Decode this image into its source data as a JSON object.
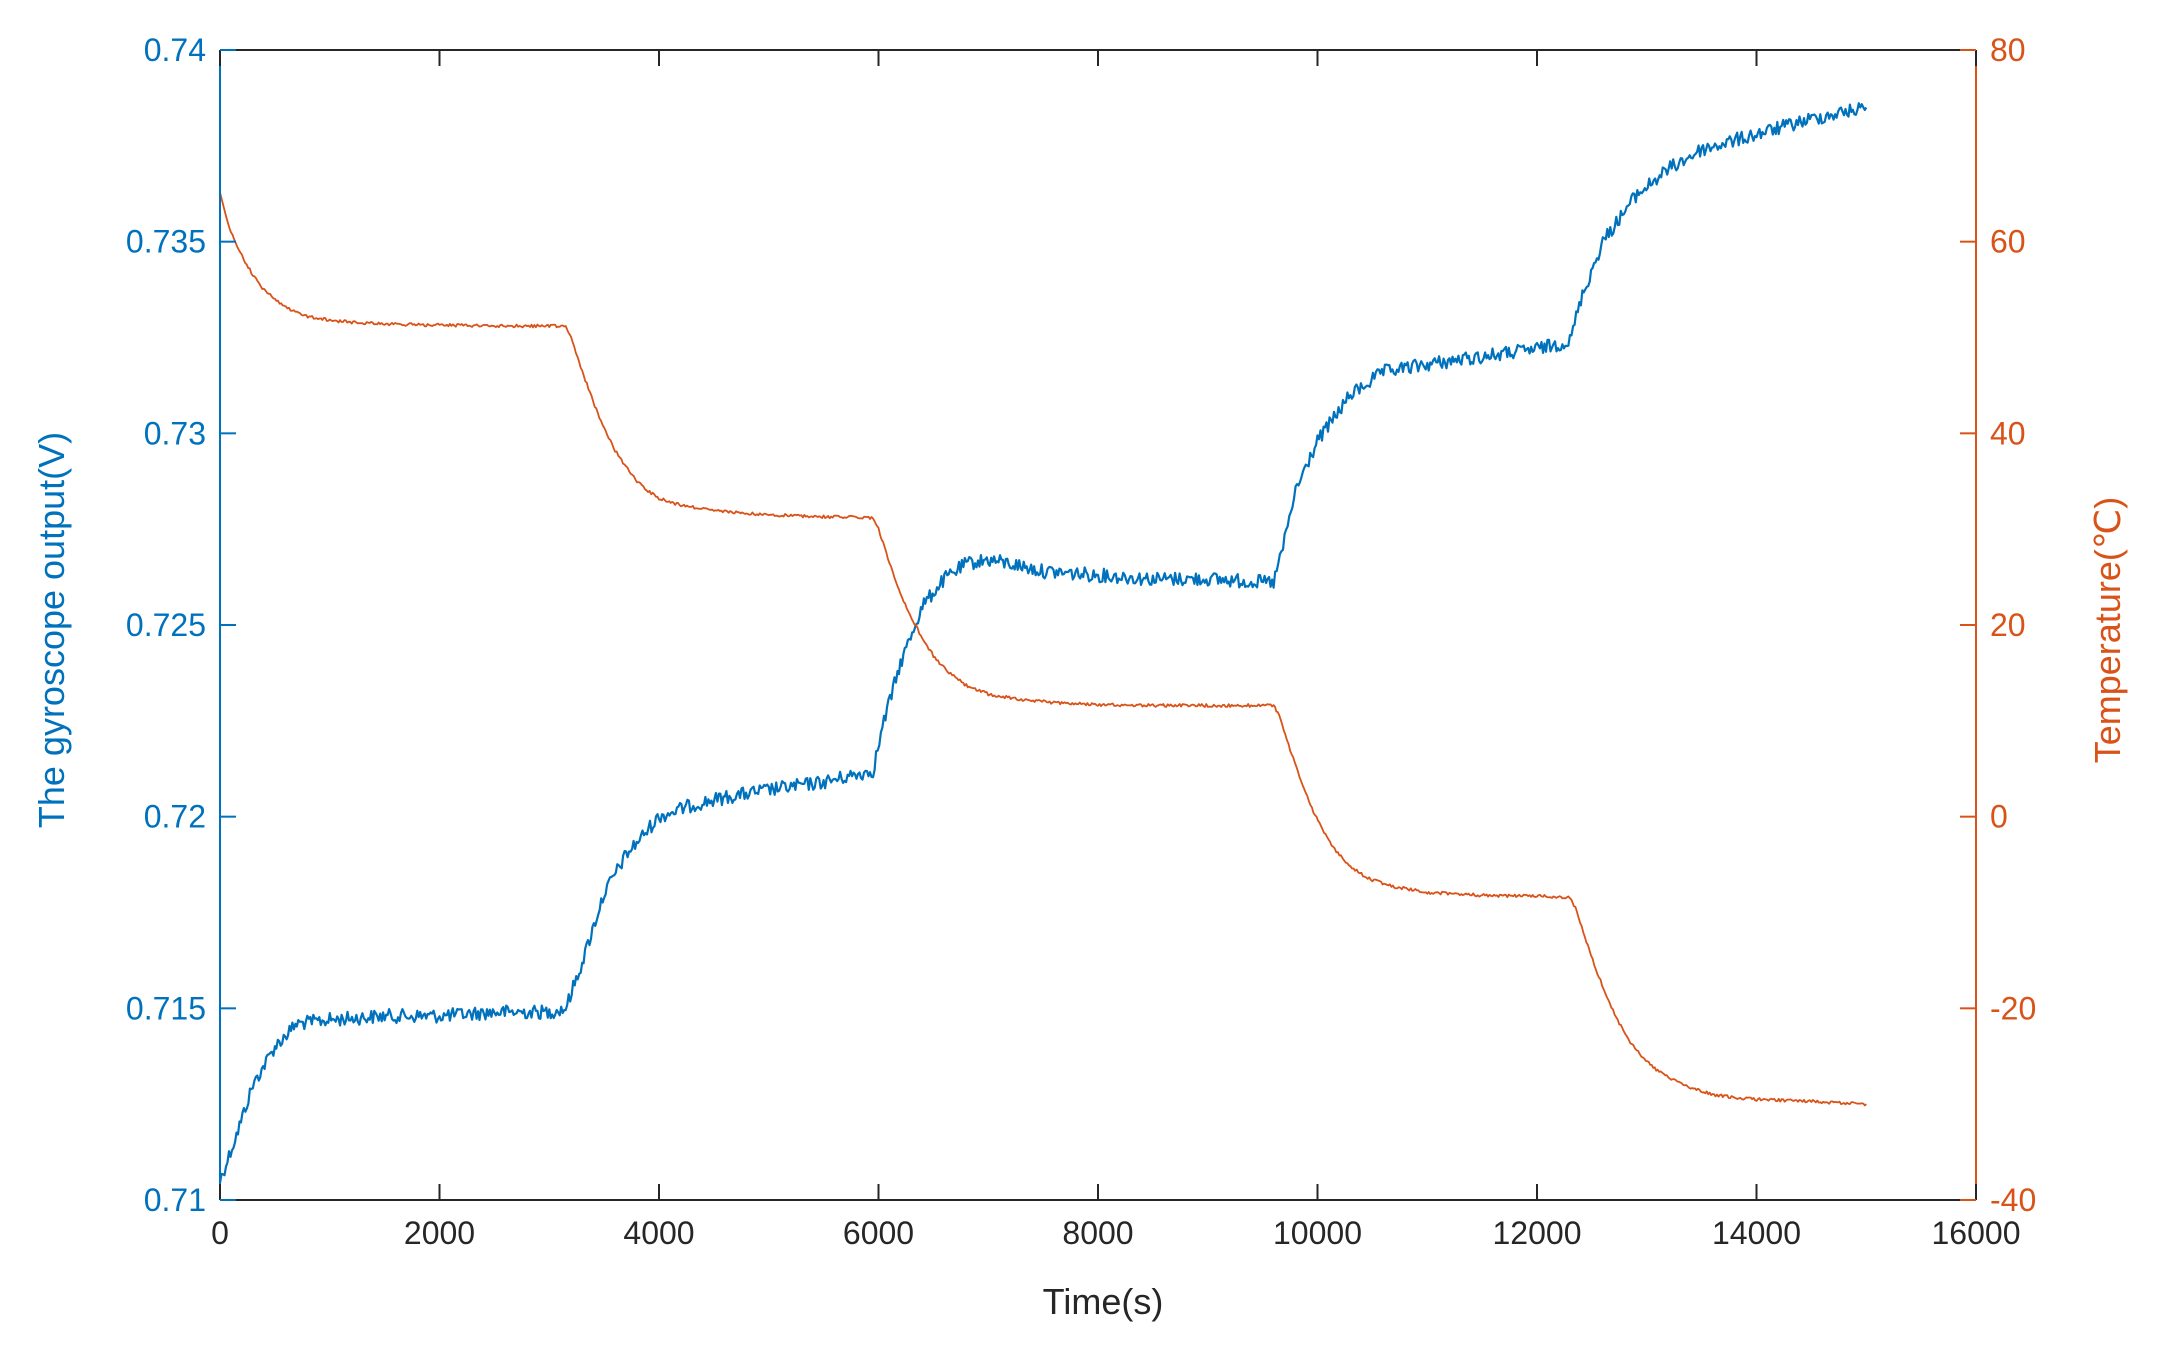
{
  "chart_data": {
    "type": "line",
    "title": "",
    "xlabel": "Time(s)",
    "ylabel_left": "The gyroscope output(V)",
    "ylabel_right": "Temperature(℃)",
    "xlim": [
      0,
      16000
    ],
    "ylim_left": [
      0.71,
      0.74
    ],
    "ylim_right": [
      -40,
      80
    ],
    "x_ticks": [
      0,
      2000,
      4000,
      6000,
      8000,
      10000,
      12000,
      14000,
      16000
    ],
    "x_tick_labels": [
      "0",
      "2000",
      "4000",
      "6000",
      "8000",
      "10000",
      "12000",
      "14000",
      "16000"
    ],
    "y_left_ticks": [
      0.71,
      0.715,
      0.72,
      0.725,
      0.73,
      0.735,
      0.74
    ],
    "y_left_tick_labels": [
      "0.71",
      "0.715",
      "0.72",
      "0.725",
      "0.73",
      "0.735",
      "0.74"
    ],
    "y_right_ticks": [
      -40,
      -20,
      0,
      20,
      40,
      60,
      80
    ],
    "y_right_tick_labels": [
      "-40",
      "-20",
      "0",
      "20",
      "40",
      "60",
      "80"
    ],
    "grid": false,
    "colors": {
      "left": "#0072BD",
      "right": "#D95319",
      "frame": "#262626"
    },
    "series": [
      {
        "axis": "left",
        "x": [
          0,
          150,
          300,
          500,
          700,
          1000,
          1500,
          2000,
          2500,
          3000,
          3150,
          3300,
          3500,
          3700,
          4000,
          4300,
          4600,
          5000,
          5500,
          5950,
          6050,
          6200,
          6400,
          6600,
          6800,
          7000,
          7200,
          7500,
          8000,
          8500,
          9000,
          9600,
          9700,
          9800,
          10000,
          10300,
          10600,
          11000,
          11500,
          12000,
          12300,
          12400,
          12600,
          12900,
          13200,
          13500,
          14000,
          14500,
          15000
        ],
        "y": [
          0.7105,
          0.7117,
          0.713,
          0.714,
          0.7146,
          0.7147,
          0.7148,
          0.7148,
          0.7149,
          0.7149,
          0.715,
          0.7162,
          0.718,
          0.719,
          0.72,
          0.7203,
          0.7205,
          0.7207,
          0.7209,
          0.7212,
          0.7225,
          0.724,
          0.7255,
          0.7262,
          0.7266,
          0.7267,
          0.7266,
          0.7264,
          0.7263,
          0.7262,
          0.7262,
          0.7261,
          0.7272,
          0.7285,
          0.7298,
          0.731,
          0.7316,
          0.7318,
          0.732,
          0.7322,
          0.7324,
          0.7335,
          0.735,
          0.7362,
          0.7369,
          0.7374,
          0.7378,
          0.7382,
          0.7385
        ]
      },
      {
        "axis": "right",
        "x": [
          0,
          100,
          200,
          300,
          400,
          500,
          600,
          700,
          800,
          1000,
          1200,
          1500,
          2000,
          2500,
          3000,
          3150,
          3200,
          3300,
          3400,
          3500,
          3600,
          3700,
          3800,
          3900,
          4000,
          4200,
          4500,
          5000,
          5500,
          5950,
          6000,
          6100,
          6200,
          6300,
          6400,
          6500,
          6600,
          6700,
          6800,
          7000,
          7300,
          7600,
          8000,
          8500,
          9000,
          9600,
          9650,
          9750,
          9850,
          9950,
          10100,
          10200,
          10300,
          10400,
          10500,
          10700,
          11000,
          11500,
          12000,
          12300,
          12350,
          12450,
          12550,
          12650,
          12750,
          12850,
          12950,
          13100,
          13250,
          13400,
          13600,
          13800,
          14000,
          14500,
          15000
        ],
        "y": [
          65,
          61,
          58.5,
          56.5,
          55,
          54,
          53.2,
          52.6,
          52.2,
          51.8,
          51.6,
          51.4,
          51.3,
          51.2,
          51.2,
          51.2,
          50,
          46.5,
          43.3,
          40.5,
          38.2,
          36.5,
          35,
          34,
          33.2,
          32.5,
          31.9,
          31.5,
          31.3,
          31.2,
          30,
          26.5,
          23.3,
          20.8,
          18.6,
          16.8,
          15.5,
          14.5,
          13.7,
          12.8,
          12.2,
          11.9,
          11.7,
          11.6,
          11.6,
          11.6,
          10.5,
          7,
          3.8,
          0.8,
          -2.5,
          -4,
          -5.2,
          -6,
          -6.6,
          -7.3,
          -7.9,
          -8.2,
          -8.3,
          -8.4,
          -9.5,
          -13,
          -16.3,
          -19.2,
          -21.6,
          -23.5,
          -25,
          -26.5,
          -27.5,
          -28.3,
          -29,
          -29.3,
          -29.5,
          -29.7,
          -30
        ]
      }
    ]
  }
}
